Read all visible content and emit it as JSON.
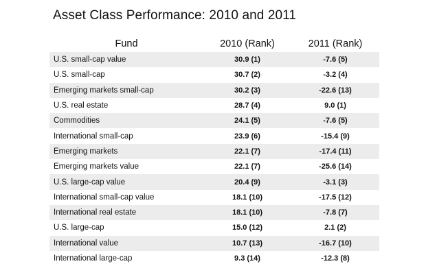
{
  "title": "Asset Class Performance: 2010 and 2011",
  "columns": {
    "fund": "Fund",
    "y2010": "2010  (Rank)",
    "y2011": "2011 (Rank)"
  },
  "rows": [
    {
      "fund": "U.S. small-cap value",
      "y2010": "30.9 (1)",
      "y2011": "-7.6 (5)"
    },
    {
      "fund": "U.S. small-cap",
      "y2010": "30.7 (2)",
      "y2011": "-3.2 (4)"
    },
    {
      "fund": "Emerging markets small-cap",
      "y2010": "30.2 (3)",
      "y2011": "-22.6 (13)"
    },
    {
      "fund": "U.S. real estate",
      "y2010": "28.7 (4)",
      "y2011": "9.0 (1)"
    },
    {
      "fund": "Commodities",
      "y2010": "24.1 (5)",
      "y2011": "-7.6 (5)"
    },
    {
      "fund": "International small-cap",
      "y2010": "23.9 (6)",
      "y2011": "-15.4 (9)"
    },
    {
      "fund": "Emerging markets",
      "y2010": "22.1 (7)",
      "y2011": "-17.4 (11)"
    },
    {
      "fund": "Emerging markets value",
      "y2010": "22.1 (7)",
      "y2011": "-25.6 (14)"
    },
    {
      "fund": "U.S. large-cap value",
      "y2010": "20.4 (9)",
      "y2011": "-3.1 (3)"
    },
    {
      "fund": "International small-cap value",
      "y2010": "18.1 (10)",
      "y2011": "-17.5 (12)"
    },
    {
      "fund": "International real estate",
      "y2010": "18.1 (10)",
      "y2011": "-7.8 (7)"
    },
    {
      "fund": "U.S. large-cap",
      "y2010": "15.0 (12)",
      "y2011": "2.1 (2)"
    },
    {
      "fund": "International value",
      "y2010": "10.7 (13)",
      "y2011": "-16.7 (10)"
    },
    {
      "fund": "International large-cap",
      "y2010": "9.3 (14)",
      "y2011": "-12.3 (8)"
    }
  ]
}
